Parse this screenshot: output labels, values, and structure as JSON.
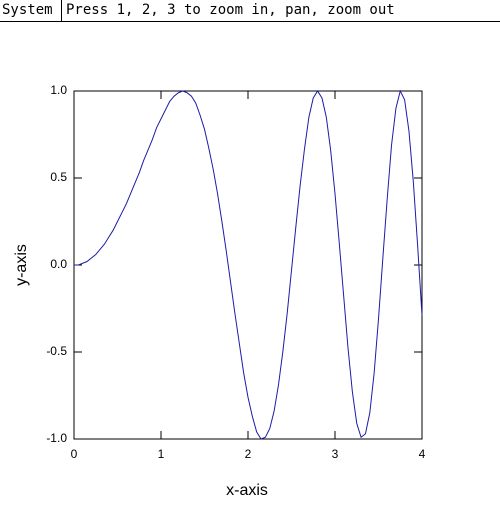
{
  "menu": {
    "button": "System",
    "message": "Press 1, 2, 3 to zoom in, pan, zoom out"
  },
  "chart_data": {
    "type": "line",
    "xlabel": "x-axis",
    "ylabel": "y-axis",
    "color": "#1c1ca8",
    "x": [
      0,
      0.05,
      0.1,
      0.15,
      0.2,
      0.25,
      0.3,
      0.35,
      0.4,
      0.45,
      0.5,
      0.55,
      0.6,
      0.65,
      0.7,
      0.75,
      0.8,
      0.85,
      0.9,
      0.95,
      1,
      1.05,
      1.1,
      1.15,
      1.2,
      1.25,
      1.3,
      1.35,
      1.4,
      1.45,
      1.5,
      1.55,
      1.6,
      1.65,
      1.7,
      1.75,
      1.8,
      1.85,
      1.9,
      1.95,
      2,
      2.05,
      2.1,
      2.15,
      2.2,
      2.25,
      2.3,
      2.35,
      2.4,
      2.45,
      2.5,
      2.55,
      2.6,
      2.65,
      2.7,
      2.75,
      2.8,
      2.85,
      2.9,
      2.95,
      3,
      3.05,
      3.1,
      3.15,
      3.2,
      3.25,
      3.3,
      3.35,
      3.4,
      3.45,
      3.5,
      3.55,
      3.6,
      3.65,
      3.7,
      3.75,
      3.8,
      3.85,
      3.9,
      3.95,
      4
    ],
    "values": [
      0,
      0,
      0.01,
      0.02,
      0.04,
      0.06,
      0.09,
      0.12,
      0.16,
      0.2,
      0.25,
      0.3,
      0.35,
      0.41,
      0.47,
      0.53,
      0.6,
      0.66,
      0.72,
      0.79,
      0.84,
      0.89,
      0.94,
      0.97,
      0.99,
      1,
      0.99,
      0.97,
      0.93,
      0.86,
      0.78,
      0.67,
      0.55,
      0.41,
      0.25,
      0.08,
      -0.1,
      -0.28,
      -0.45,
      -0.62,
      -0.76,
      -0.87,
      -0.96,
      -1,
      -0.99,
      -0.94,
      -0.84,
      -0.69,
      -0.5,
      -0.28,
      -0.03,
      0.22,
      0.46,
      0.67,
      0.85,
      0.96,
      1,
      0.96,
      0.85,
      0.66,
      0.41,
      0.12,
      -0.18,
      -0.48,
      -0.73,
      -0.91,
      -0.99,
      -0.97,
      -0.85,
      -0.62,
      -0.31,
      0.04,
      0.38,
      0.69,
      0.9,
      1,
      0.95,
      0.77,
      0.48,
      0.11,
      -0.29
    ],
    "xlim": [
      0,
      4
    ],
    "xticks": [
      0,
      1,
      2,
      3,
      4
    ],
    "ylim": [
      -1,
      1
    ],
    "yticks": [
      {
        "value": -1,
        "label": "-1.0"
      },
      {
        "value": -0.5,
        "label": "-0.5"
      },
      {
        "value": 0,
        "label": "0.0"
      },
      {
        "value": 0.5,
        "label": "0.5"
      },
      {
        "value": 1,
        "label": "1.0"
      }
    ]
  }
}
